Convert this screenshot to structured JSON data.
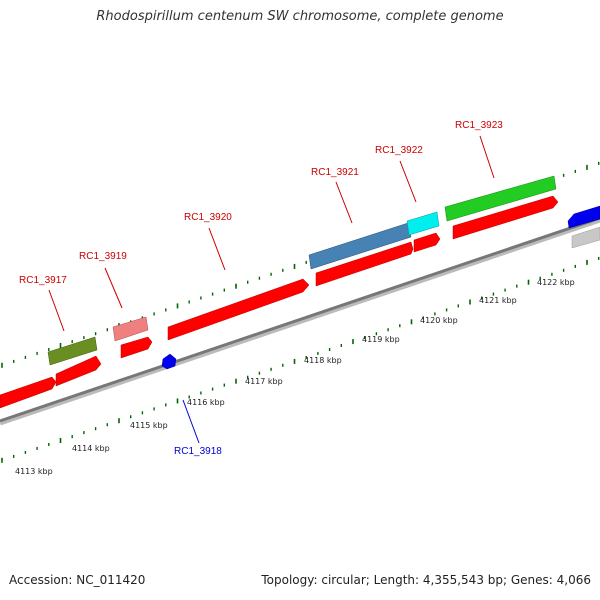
{
  "title": "Rhodospirillum centenum SW chromosome, complete genome",
  "accession": "Accession: NC_011420",
  "summary": "Topology: circular; Length: 4,355,543 bp; Genes: 4,066",
  "colors": {
    "red_gene": "#ff0000",
    "blue_label": "#0000cc",
    "tick_green": "#006600",
    "backbone": "#888888"
  },
  "scale_labels": [
    "4113 kbp",
    "4114 kbp",
    "4115 kbp",
    "4116 kbp",
    "4117 kbp",
    "4118 kbp",
    "4119 kbp",
    "4120 kbp",
    "4121 kbp",
    "4122 kbp"
  ],
  "gene_labels": [
    {
      "name": "RC1_3917",
      "color": "#cc0000"
    },
    {
      "name": "RC1_3918",
      "color": "#0000cc"
    },
    {
      "name": "RC1_3919",
      "color": "#cc0000"
    },
    {
      "name": "RC1_3920",
      "color": "#cc0000"
    },
    {
      "name": "RC1_3921",
      "color": "#cc0000"
    },
    {
      "name": "RC1_3922",
      "color": "#cc0000"
    },
    {
      "name": "RC1_3923",
      "color": "#cc0000"
    }
  ]
}
